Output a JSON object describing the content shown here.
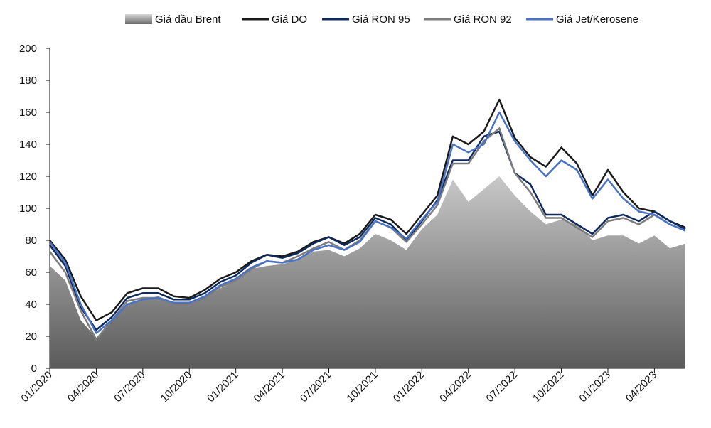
{
  "chart_data": {
    "type": "line",
    "ylim": [
      0,
      200
    ],
    "yticks": [
      "0",
      "20",
      "40",
      "60",
      "80",
      "100",
      "120",
      "140",
      "160",
      "180",
      "200"
    ],
    "xlim": [
      "2020-01",
      "2023-06"
    ],
    "xticks": [
      {
        "label": "01/2020",
        "date": "2020-01"
      },
      {
        "label": "04/2020",
        "date": "2020-04"
      },
      {
        "label": "07/2020",
        "date": "2020-07"
      },
      {
        "label": "10/2020",
        "date": "2020-10"
      },
      {
        "label": "01/2021",
        "date": "2021-01"
      },
      {
        "label": "04/2021",
        "date": "2021-04"
      },
      {
        "label": "07/2021",
        "date": "2021-07"
      },
      {
        "label": "10/2021",
        "date": "2021-10"
      },
      {
        "label": "01/2022",
        "date": "2022-01"
      },
      {
        "label": "04/2022",
        "date": "2022-04"
      },
      {
        "label": "07/2022",
        "date": "2022-07"
      },
      {
        "label": "10/2022",
        "date": "2022-10"
      },
      {
        "label": "01/2023",
        "date": "2023-01"
      },
      {
        "label": "04/2023",
        "date": "2023-04"
      }
    ],
    "grid": false,
    "legend_position": "top",
    "series": [
      {
        "name": "Giá dầu Brent",
        "kind": "area",
        "color": "#9a9a9a",
        "points": [
          [
            "2020-01",
            64
          ],
          [
            "2020-02",
            55
          ],
          [
            "2020-03",
            30
          ],
          [
            "2020-04",
            19
          ],
          [
            "2020-05",
            30
          ],
          [
            "2020-06",
            40
          ],
          [
            "2020-07",
            43
          ],
          [
            "2020-08",
            45
          ],
          [
            "2020-09",
            41
          ],
          [
            "2020-10",
            41
          ],
          [
            "2020-11",
            44
          ],
          [
            "2020-12",
            50
          ],
          [
            "2021-01",
            55
          ],
          [
            "2021-02",
            62
          ],
          [
            "2021-03",
            64
          ],
          [
            "2021-04",
            65
          ],
          [
            "2021-05",
            68
          ],
          [
            "2021-06",
            73
          ],
          [
            "2021-07",
            74
          ],
          [
            "2021-08",
            70
          ],
          [
            "2021-09",
            75
          ],
          [
            "2021-10",
            84
          ],
          [
            "2021-11",
            80
          ],
          [
            "2021-12",
            74
          ],
          [
            "2022-01",
            87
          ],
          [
            "2022-02",
            96
          ],
          [
            "2022-03",
            118
          ],
          [
            "2022-04",
            104
          ],
          [
            "2022-05",
            112
          ],
          [
            "2022-06",
            120
          ],
          [
            "2022-07",
            108
          ],
          [
            "2022-08",
            98
          ],
          [
            "2022-09",
            90
          ],
          [
            "2022-10",
            93
          ],
          [
            "2022-11",
            90
          ],
          [
            "2022-12",
            80
          ],
          [
            "2023-01",
            83
          ],
          [
            "2023-02",
            83
          ],
          [
            "2023-03",
            78
          ],
          [
            "2023-04",
            83
          ],
          [
            "2023-05",
            75
          ],
          [
            "2023-06",
            78
          ]
        ]
      },
      {
        "name": "Giá DO",
        "kind": "line",
        "color": "#1a1a1a",
        "points": [
          [
            "2020-01",
            80
          ],
          [
            "2020-02",
            68
          ],
          [
            "2020-03",
            45
          ],
          [
            "2020-04",
            30
          ],
          [
            "2020-05",
            35
          ],
          [
            "2020-06",
            47
          ],
          [
            "2020-07",
            50
          ],
          [
            "2020-08",
            50
          ],
          [
            "2020-09",
            45
          ],
          [
            "2020-10",
            44
          ],
          [
            "2020-11",
            49
          ],
          [
            "2020-12",
            56
          ],
          [
            "2021-01",
            60
          ],
          [
            "2021-02",
            67
          ],
          [
            "2021-03",
            71
          ],
          [
            "2021-04",
            70
          ],
          [
            "2021-05",
            73
          ],
          [
            "2021-06",
            79
          ],
          [
            "2021-07",
            82
          ],
          [
            "2021-08",
            78
          ],
          [
            "2021-09",
            84
          ],
          [
            "2021-10",
            96
          ],
          [
            "2021-11",
            93
          ],
          [
            "2021-12",
            84
          ],
          [
            "2022-01",
            96
          ],
          [
            "2022-02",
            108
          ],
          [
            "2022-03",
            145
          ],
          [
            "2022-04",
            140
          ],
          [
            "2022-05",
            148
          ],
          [
            "2022-06",
            168
          ],
          [
            "2022-07",
            144
          ],
          [
            "2022-08",
            132
          ],
          [
            "2022-09",
            126
          ],
          [
            "2022-10",
            138
          ],
          [
            "2022-11",
            128
          ],
          [
            "2022-12",
            108
          ],
          [
            "2023-01",
            124
          ],
          [
            "2023-02",
            110
          ],
          [
            "2023-03",
            100
          ],
          [
            "2023-04",
            98
          ],
          [
            "2023-05",
            92
          ],
          [
            "2023-06",
            88
          ]
        ]
      },
      {
        "name": "Giá RON 95",
        "kind": "line",
        "color": "#0f2b5e",
        "points": [
          [
            "2020-01",
            77
          ],
          [
            "2020-02",
            64
          ],
          [
            "2020-03",
            38
          ],
          [
            "2020-04",
            24
          ],
          [
            "2020-05",
            32
          ],
          [
            "2020-06",
            44
          ],
          [
            "2020-07",
            47
          ],
          [
            "2020-08",
            47
          ],
          [
            "2020-09",
            43
          ],
          [
            "2020-10",
            43
          ],
          [
            "2020-11",
            47
          ],
          [
            "2020-12",
            54
          ],
          [
            "2021-01",
            58
          ],
          [
            "2021-02",
            66
          ],
          [
            "2021-03",
            71
          ],
          [
            "2021-04",
            69
          ],
          [
            "2021-05",
            72
          ],
          [
            "2021-06",
            78
          ],
          [
            "2021-07",
            82
          ],
          [
            "2021-08",
            77
          ],
          [
            "2021-09",
            82
          ],
          [
            "2021-10",
            94
          ],
          [
            "2021-11",
            90
          ],
          [
            "2021-12",
            80
          ],
          [
            "2022-01",
            92
          ],
          [
            "2022-02",
            105
          ],
          [
            "2022-03",
            130
          ],
          [
            "2022-04",
            130
          ],
          [
            "2022-05",
            145
          ],
          [
            "2022-06",
            148
          ],
          [
            "2022-07",
            122
          ],
          [
            "2022-08",
            115
          ],
          [
            "2022-09",
            96
          ],
          [
            "2022-10",
            96
          ],
          [
            "2022-11",
            90
          ],
          [
            "2022-12",
            84
          ],
          [
            "2023-01",
            94
          ],
          [
            "2023-02",
            96
          ],
          [
            "2023-03",
            92
          ],
          [
            "2023-04",
            98
          ],
          [
            "2023-05",
            92
          ],
          [
            "2023-06",
            87
          ]
        ]
      },
      {
        "name": "Giá RON 92",
        "kind": "line",
        "color": "#7d7d7d",
        "points": [
          [
            "2020-01",
            73
          ],
          [
            "2020-02",
            60
          ],
          [
            "2020-03",
            36
          ],
          [
            "2020-04",
            18
          ],
          [
            "2020-05",
            30
          ],
          [
            "2020-06",
            42
          ],
          [
            "2020-07",
            44
          ],
          [
            "2020-08",
            44
          ],
          [
            "2020-09",
            41
          ],
          [
            "2020-10",
            40
          ],
          [
            "2020-11",
            44
          ],
          [
            "2020-12",
            51
          ],
          [
            "2021-01",
            55
          ],
          [
            "2021-02",
            62
          ],
          [
            "2021-03",
            67
          ],
          [
            "2021-04",
            66
          ],
          [
            "2021-05",
            70
          ],
          [
            "2021-06",
            75
          ],
          [
            "2021-07",
            79
          ],
          [
            "2021-08",
            74
          ],
          [
            "2021-09",
            80
          ],
          [
            "2021-10",
            92
          ],
          [
            "2021-11",
            88
          ],
          [
            "2021-12",
            79
          ],
          [
            "2022-01",
            90
          ],
          [
            "2022-02",
            102
          ],
          [
            "2022-03",
            128
          ],
          [
            "2022-04",
            128
          ],
          [
            "2022-05",
            142
          ],
          [
            "2022-06",
            150
          ],
          [
            "2022-07",
            122
          ],
          [
            "2022-08",
            110
          ],
          [
            "2022-09",
            94
          ],
          [
            "2022-10",
            94
          ],
          [
            "2022-11",
            88
          ],
          [
            "2022-12",
            82
          ],
          [
            "2023-01",
            92
          ],
          [
            "2023-02",
            94
          ],
          [
            "2023-03",
            90
          ],
          [
            "2023-04",
            96
          ],
          [
            "2023-05",
            90
          ],
          [
            "2023-06",
            86
          ]
        ]
      },
      {
        "name": "Giá Jet/Kerosene",
        "kind": "line",
        "color": "#4a72c4",
        "points": [
          [
            "2020-01",
            79
          ],
          [
            "2020-02",
            66
          ],
          [
            "2020-03",
            40
          ],
          [
            "2020-04",
            22
          ],
          [
            "2020-05",
            30
          ],
          [
            "2020-06",
            40
          ],
          [
            "2020-07",
            43
          ],
          [
            "2020-08",
            44
          ],
          [
            "2020-09",
            41
          ],
          [
            "2020-10",
            41
          ],
          [
            "2020-11",
            45
          ],
          [
            "2020-12",
            52
          ],
          [
            "2021-01",
            56
          ],
          [
            "2021-02",
            63
          ],
          [
            "2021-03",
            67
          ],
          [
            "2021-04",
            66
          ],
          [
            "2021-05",
            68
          ],
          [
            "2021-06",
            74
          ],
          [
            "2021-07",
            77
          ],
          [
            "2021-08",
            74
          ],
          [
            "2021-09",
            79
          ],
          [
            "2021-10",
            92
          ],
          [
            "2021-11",
            88
          ],
          [
            "2021-12",
            81
          ],
          [
            "2022-01",
            93
          ],
          [
            "2022-02",
            104
          ],
          [
            "2022-03",
            140
          ],
          [
            "2022-04",
            135
          ],
          [
            "2022-05",
            140
          ],
          [
            "2022-06",
            160
          ],
          [
            "2022-07",
            142
          ],
          [
            "2022-08",
            130
          ],
          [
            "2022-09",
            120
          ],
          [
            "2022-10",
            130
          ],
          [
            "2022-11",
            124
          ],
          [
            "2022-12",
            106
          ],
          [
            "2023-01",
            118
          ],
          [
            "2023-02",
            106
          ],
          [
            "2023-03",
            98
          ],
          [
            "2023-04",
            96
          ],
          [
            "2023-05",
            90
          ],
          [
            "2023-06",
            86
          ]
        ]
      }
    ]
  }
}
